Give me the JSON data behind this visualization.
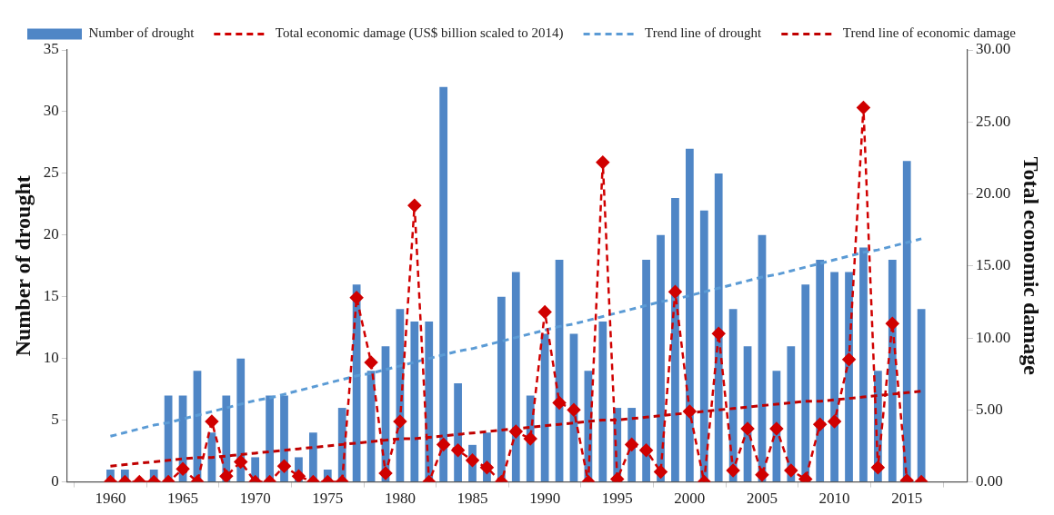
{
  "chart_data": {
    "type": "bar",
    "ylabel": "Number of drought",
    "y2label": "Total economic damage",
    "x": [
      1960,
      1961,
      1962,
      1963,
      1964,
      1965,
      1966,
      1967,
      1968,
      1969,
      1970,
      1971,
      1972,
      1973,
      1974,
      1975,
      1976,
      1977,
      1978,
      1979,
      1980,
      1981,
      1982,
      1983,
      1984,
      1985,
      1986,
      1987,
      1988,
      1989,
      1990,
      1991,
      1992,
      1993,
      1994,
      1995,
      1996,
      1997,
      1998,
      1999,
      2000,
      2001,
      2002,
      2003,
      2004,
      2005,
      2006,
      2007,
      2008,
      2009,
      2010,
      2011,
      2012,
      2013,
      2014,
      2015,
      2016
    ],
    "xlim": [
      1959.6,
      2016.6
    ],
    "xticks": [
      1960,
      1965,
      1970,
      1975,
      1980,
      1985,
      1990,
      1995,
      2000,
      2005,
      2010,
      2015
    ],
    "ylim": [
      0,
      35
    ],
    "yticks": [
      0,
      5,
      10,
      15,
      20,
      25,
      30,
      35
    ],
    "y2lim": [
      0,
      30
    ],
    "y2ticks": [
      {
        "value": 0,
        "label": "0.00"
      },
      {
        "value": 5,
        "label": "5.00"
      },
      {
        "value": 10,
        "label": "10.00"
      },
      {
        "value": 15,
        "label": "15.00"
      },
      {
        "value": 20,
        "label": "20.00"
      },
      {
        "value": 25,
        "label": "25.00"
      },
      {
        "value": 30,
        "label": "30.00"
      }
    ],
    "grid": false,
    "legend": "top left",
    "series": [
      {
        "name": "Number of drought",
        "color": "#4f86c6",
        "values": [
          1,
          1,
          0,
          1,
          7,
          7,
          9,
          4,
          7,
          10,
          2,
          7,
          7,
          2,
          4,
          1,
          6,
          16,
          9,
          11,
          14,
          13,
          13,
          32,
          8,
          3,
          4,
          15,
          17,
          7,
          12,
          18,
          12,
          9,
          13,
          6,
          6,
          18,
          20,
          23,
          27,
          22,
          25,
          14,
          11,
          20,
          9,
          11,
          16,
          18,
          17,
          17,
          19,
          9,
          18,
          26,
          14
        ]
      },
      {
        "name": "Total economic damage (US$ billion scaled to 2014)",
        "type": "line",
        "axis": "y2",
        "color": "#d00000",
        "marker": "diamond",
        "line_style": "dashed",
        "values": [
          0,
          0,
          0,
          0,
          0,
          0.9,
          0,
          4.2,
          0.4,
          1.4,
          0,
          0,
          1.1,
          0.4,
          0,
          0,
          0,
          12.8,
          8.3,
          0.6,
          4.2,
          19.2,
          0,
          2.6,
          2.2,
          1.5,
          1.0,
          0,
          3.5,
          3.0,
          11.8,
          5.5,
          5.0,
          0,
          22.2,
          0.2,
          2.6,
          2.2,
          0.7,
          13.2,
          4.9,
          0,
          10.3,
          0.8,
          3.7,
          0.5,
          3.7,
          0.8,
          0.2,
          4.0,
          4.2,
          8.5,
          26.0,
          1.0,
          11.0,
          0.1,
          0
        ]
      },
      {
        "name": "Trend line of drought",
        "type": "line",
        "color": "#5b9bd5",
        "line_style": "dashed",
        "values": [
          3.7,
          4.0,
          4.3,
          4.6,
          4.8,
          5.1,
          5.4,
          5.7,
          6.0,
          6.3,
          6.6,
          6.8,
          7.1,
          7.4,
          7.7,
          8.0,
          8.3,
          8.6,
          8.8,
          9.1,
          9.4,
          9.7,
          10.0,
          10.3,
          10.6,
          10.8,
          11.1,
          11.4,
          11.7,
          12.0,
          12.3,
          12.6,
          12.8,
          13.1,
          13.4,
          13.7,
          14.0,
          14.3,
          14.6,
          14.8,
          15.1,
          15.4,
          15.7,
          16.0,
          16.3,
          16.6,
          16.8,
          17.1,
          17.4,
          17.7,
          18.0,
          18.3,
          18.6,
          18.8,
          19.1,
          19.4,
          19.7
        ]
      },
      {
        "name": "Trend line of economic damage",
        "type": "line",
        "axis": "y2",
        "color": "#c00000",
        "line_style": "dashed",
        "values": [
          1.1,
          1.2,
          1.3,
          1.4,
          1.5,
          1.6,
          1.7,
          1.7,
          1.8,
          1.9,
          2.0,
          2.1,
          2.2,
          2.3,
          2.4,
          2.5,
          2.6,
          2.7,
          2.8,
          2.9,
          3.0,
          3.0,
          3.1,
          3.2,
          3.3,
          3.4,
          3.5,
          3.6,
          3.7,
          3.8,
          3.9,
          4.0,
          4.1,
          4.2,
          4.3,
          4.3,
          4.4,
          4.5,
          4.6,
          4.7,
          4.8,
          4.9,
          5.0,
          5.1,
          5.2,
          5.3,
          5.4,
          5.5,
          5.6,
          5.6,
          5.7,
          5.8,
          5.9,
          6.0,
          6.1,
          6.2,
          6.3
        ]
      }
    ]
  }
}
